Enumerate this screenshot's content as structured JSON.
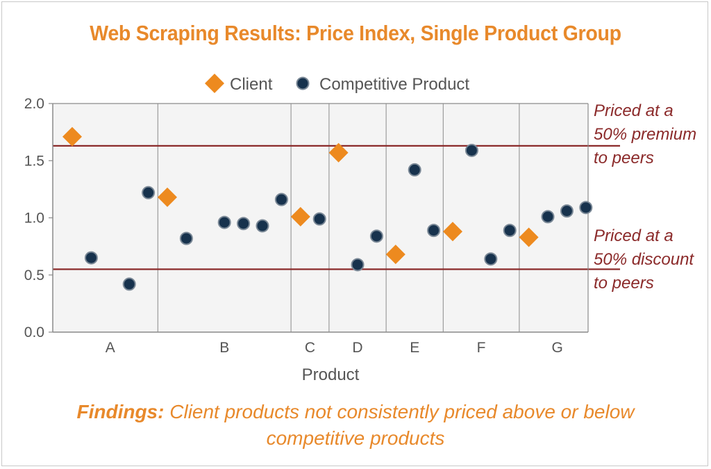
{
  "chart_data": {
    "type": "scatter",
    "title": "Web Scraping Results: Price Index, Single Product Group",
    "xlabel": "Product",
    "ylabel": "",
    "ylim": [
      0,
      2.0
    ],
    "yticks": [
      "0.0",
      "0.5",
      "1.0",
      "1.5",
      "2.0"
    ],
    "legend_position": "top-center",
    "grid": false,
    "colors": {
      "client": "#ed8a1f",
      "competitive": "#17324d",
      "reference_line": "#8b2a2a",
      "title": "#e8892b"
    },
    "groups": [
      {
        "name": "A",
        "slots": [
          1,
          5
        ]
      },
      {
        "name": "B",
        "slots": [
          6,
          12
        ]
      },
      {
        "name": "C",
        "slots": [
          13,
          14
        ]
      },
      {
        "name": "D",
        "slots": [
          15,
          17
        ]
      },
      {
        "name": "E",
        "slots": [
          18,
          20
        ]
      },
      {
        "name": "F",
        "slots": [
          21,
          24
        ]
      },
      {
        "name": "G",
        "slots": [
          25,
          28
        ]
      }
    ],
    "series": [
      {
        "name": "Client",
        "marker": "diamond",
        "points": [
          {
            "group": "A",
            "slot": 1,
            "y": 1.71
          },
          {
            "group": "B",
            "slot": 6,
            "y": 1.18
          },
          {
            "group": "C",
            "slot": 13,
            "y": 1.01
          },
          {
            "group": "D",
            "slot": 15,
            "y": 1.57
          },
          {
            "group": "E",
            "slot": 18,
            "y": 0.68
          },
          {
            "group": "F",
            "slot": 21,
            "y": 0.88
          },
          {
            "group": "G",
            "slot": 25,
            "y": 0.83
          }
        ]
      },
      {
        "name": "Competitive Product",
        "marker": "circle",
        "points": [
          {
            "group": "A",
            "slot": 2,
            "y": 0.65
          },
          {
            "group": "A",
            "slot": 4,
            "y": 0.42
          },
          {
            "group": "A",
            "slot": 5,
            "y": 1.22
          },
          {
            "group": "B",
            "slot": 7,
            "y": 0.82
          },
          {
            "group": "B",
            "slot": 9,
            "y": 0.96
          },
          {
            "group": "B",
            "slot": 10,
            "y": 0.95
          },
          {
            "group": "B",
            "slot": 11,
            "y": 0.93
          },
          {
            "group": "B",
            "slot": 12,
            "y": 1.16
          },
          {
            "group": "C",
            "slot": 14,
            "y": 0.99
          },
          {
            "group": "D",
            "slot": 16,
            "y": 0.59
          },
          {
            "group": "D",
            "slot": 17,
            "y": 0.84
          },
          {
            "group": "E",
            "slot": 19,
            "y": 1.42
          },
          {
            "group": "E",
            "slot": 20,
            "y": 0.89
          },
          {
            "group": "F",
            "slot": 22,
            "y": 1.59
          },
          {
            "group": "F",
            "slot": 23,
            "y": 0.64
          },
          {
            "group": "F",
            "slot": 24,
            "y": 0.89
          },
          {
            "group": "G",
            "slot": 26,
            "y": 1.01
          },
          {
            "group": "G",
            "slot": 27,
            "y": 1.06
          },
          {
            "group": "G",
            "slot": 28,
            "y": 1.09
          }
        ]
      }
    ],
    "reference_lines": [
      {
        "y": 1.63,
        "label": [
          "Priced at a",
          "50% premium",
          "to peers"
        ]
      },
      {
        "y": 0.55,
        "label": [
          "Priced at a",
          "50% discount",
          "to peers"
        ]
      }
    ]
  },
  "findings": {
    "bold": "Findings:",
    "text": " Client products not consistently priced above or below",
    "line2": "competitive products"
  }
}
